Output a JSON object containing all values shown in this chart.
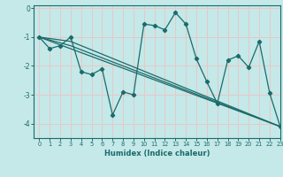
{
  "title": "",
  "xlabel": "Humidex (Indice chaleur)",
  "background_color": "#c5e8e8",
  "grid_color": "#e8c8c8",
  "line_color": "#1a6b6b",
  "xlim": [
    -0.5,
    23
  ],
  "ylim": [
    -4.5,
    0.1
  ],
  "yticks": [
    0,
    -1,
    -2,
    -3,
    -4
  ],
  "xticks": [
    0,
    1,
    2,
    3,
    4,
    5,
    6,
    7,
    8,
    9,
    10,
    11,
    12,
    13,
    14,
    15,
    16,
    17,
    18,
    19,
    20,
    21,
    22,
    23
  ],
  "main_line": {
    "x": [
      0,
      1,
      2,
      3,
      4,
      5,
      6,
      7,
      8,
      9,
      10,
      11,
      12,
      13,
      14,
      15,
      16,
      17,
      18,
      19,
      20,
      21,
      22,
      23
    ],
    "y": [
      -1.0,
      -1.4,
      -1.3,
      -1.0,
      -2.2,
      -2.3,
      -2.1,
      -3.7,
      -2.9,
      -3.0,
      -0.55,
      -0.6,
      -0.75,
      -0.15,
      -0.55,
      -1.75,
      -2.55,
      -3.3,
      -1.8,
      -1.65,
      -2.05,
      -1.15,
      -2.95,
      -4.1
    ]
  },
  "fan_lines": [
    {
      "x": [
        0,
        23
      ],
      "y": [
        -1.0,
        -4.1
      ]
    },
    {
      "x": [
        0,
        3,
        23
      ],
      "y": [
        -1.0,
        -1.15,
        -4.1
      ]
    },
    {
      "x": [
        0,
        3,
        23
      ],
      "y": [
        -1.0,
        -1.3,
        -4.1
      ]
    }
  ]
}
